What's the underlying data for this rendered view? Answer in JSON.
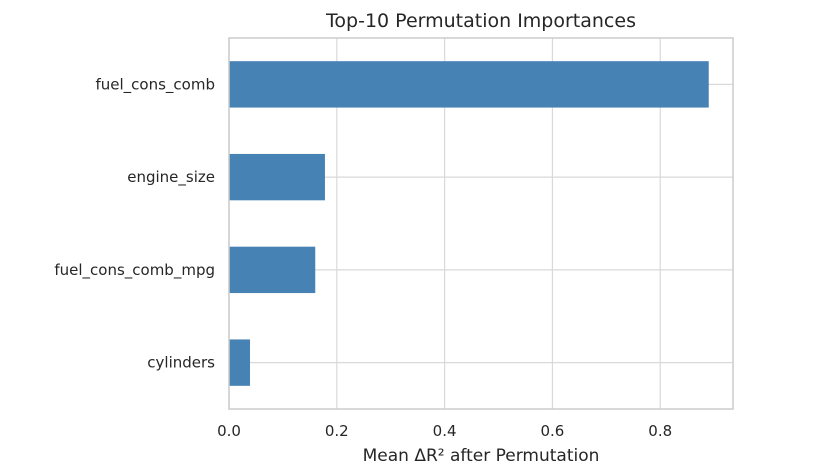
{
  "chart_data": {
    "type": "bar",
    "orientation": "horizontal",
    "title": "Top-10 Permutation Importances",
    "xlabel": "Mean ΔR² after Permutation",
    "ylabel": "",
    "categories": [
      "fuel_cons_comb",
      "engine_size",
      "fuel_cons_comb_mpg",
      "cylinders"
    ],
    "values": [
      0.89,
      0.178,
      0.16,
      0.039
    ],
    "xlim": [
      0,
      0.935
    ],
    "xticks": [
      0.0,
      0.2,
      0.4,
      0.6,
      0.8
    ],
    "xtick_labels": [
      "0.0",
      "0.2",
      "0.4",
      "0.6",
      "0.8"
    ],
    "grid": true,
    "bar_color": "#4682b4",
    "grid_color": "#d9d9d9",
    "frame_color": "#cccccc"
  }
}
